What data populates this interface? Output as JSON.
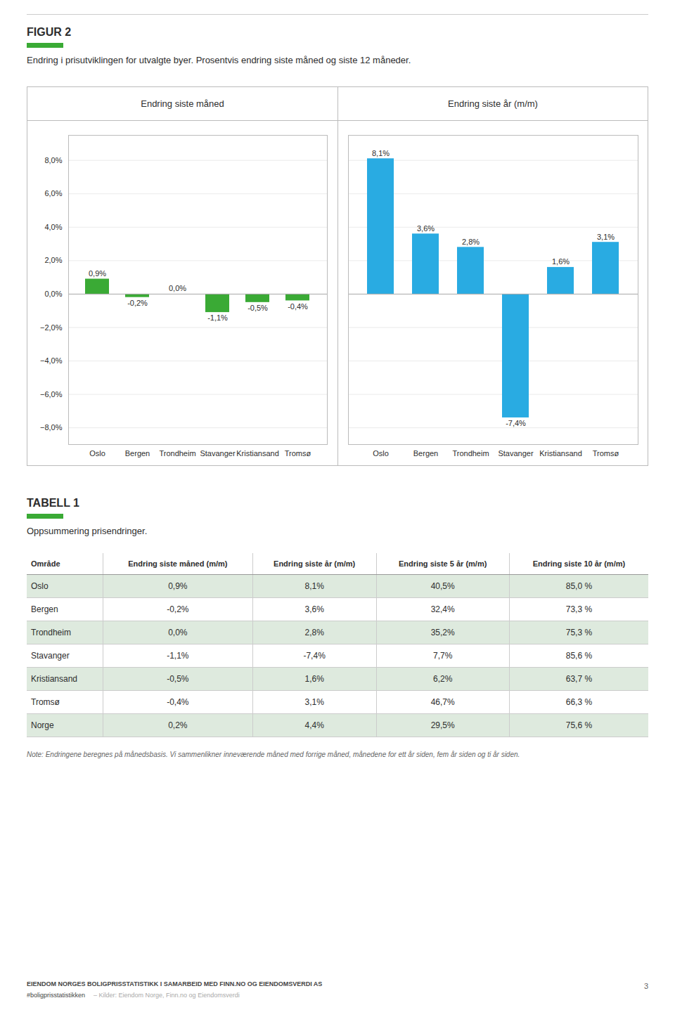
{
  "title": "FIGUR 2",
  "subtitle": "Endring i prisutviklingen for utvalgte byer. Prosentvis endring siste måned og siste 12 måneder.",
  "chart_data": [
    {
      "type": "bar",
      "title": "Endring siste måned",
      "categories": [
        "Oslo",
        "Bergen",
        "Trondheim",
        "Stavanger",
        "Kristiansand",
        "Tromsø"
      ],
      "values": [
        0.9,
        -0.2,
        0.0,
        -1.1,
        -0.5,
        -0.4
      ],
      "value_labels": [
        "0,9%",
        "-0,2%",
        "0,0%",
        "-1,1%",
        "-0,5%",
        "-0,4%"
      ],
      "data_labels": true,
      "color": "#3aaa35",
      "ylim": [
        -9.0,
        9.5
      ],
      "yticks": [
        {
          "value": -8.0,
          "label": "−8,0%"
        },
        {
          "value": -6.0,
          "label": "−6,0%"
        },
        {
          "value": -4.0,
          "label": "−4,0%"
        },
        {
          "value": -2.0,
          "label": "−2,0%"
        },
        {
          "value": 0.0,
          "label": "0,0%"
        },
        {
          "value": 2.0,
          "label": "2,0%"
        },
        {
          "value": 4.0,
          "label": "4,0%"
        },
        {
          "value": 6.0,
          "label": "6,0%"
        },
        {
          "value": 8.0,
          "label": "8,0%"
        }
      ],
      "grid": true
    },
    {
      "type": "bar",
      "title": "Endring siste år (m/m)",
      "categories": [
        "Oslo",
        "Bergen",
        "Trondheim",
        "Stavanger",
        "Kristiansand",
        "Tromsø"
      ],
      "values": [
        8.1,
        3.6,
        2.8,
        -7.4,
        1.6,
        3.1
      ],
      "value_labels": [
        "8,1%",
        "3,6%",
        "2,8%",
        "-7,4%",
        "1,6%",
        "3,1%"
      ],
      "data_labels": true,
      "color": "#29abe2",
      "ylim": [
        -9.0,
        9.5
      ],
      "yticks": [
        -8.0,
        -6.0,
        -4.0,
        -2.0,
        0.0,
        2.0,
        4.0,
        6.0,
        8.0
      ],
      "tick_labels": "x",
      "grid": true
    }
  ],
  "table": {
    "title": "TABELL 1",
    "subtitle": "Oppsummering prisendringer.",
    "headers": [
      "Område",
      "Endring siste måned (m/m)",
      "Endring siste år (m/m)",
      "Endring siste 5 år (m/m)",
      "Endring siste 10 år (m/m)"
    ],
    "rows": [
      [
        "Oslo",
        "0,9%",
        "8,1%",
        "40,5%",
        "85,0 %"
      ],
      [
        "Bergen",
        "-0,2%",
        "3,6%",
        "32,4%",
        "73,3 %"
      ],
      [
        "Trondheim",
        "0,0%",
        "2,8%",
        "35,2%",
        "75,3 %"
      ],
      [
        "Stavanger",
        "-1,1%",
        "-7,4%",
        "7,7%",
        "85,6 %"
      ],
      [
        "Kristiansand",
        "-0,5%",
        "1,6%",
        "6,2%",
        "63,7 %"
      ],
      [
        "Tromsø",
        "-0,4%",
        "3,1%",
        "46,7%",
        "66,3 %"
      ],
      [
        "Norge",
        "0,2%",
        "4,4%",
        "29,5%",
        "75,6 %"
      ]
    ],
    "note": "Note: Endringene beregnes på månedsbasis. Vi sammenlikner inneværende måned med forrige måned, månedene for ett år siden, fem år siden og ti år siden."
  },
  "footer": [
    "EIENDOM NORGES BOLIGPRISSTATISTIKK I SAMARBEID MED FINN.NO OG EIENDOMSVERDI AS",
    "#boligprisstatistikken",
    "– Kilder: Eiendom Norge, Finn.no og Eiendomsverdi",
    "3"
  ]
}
